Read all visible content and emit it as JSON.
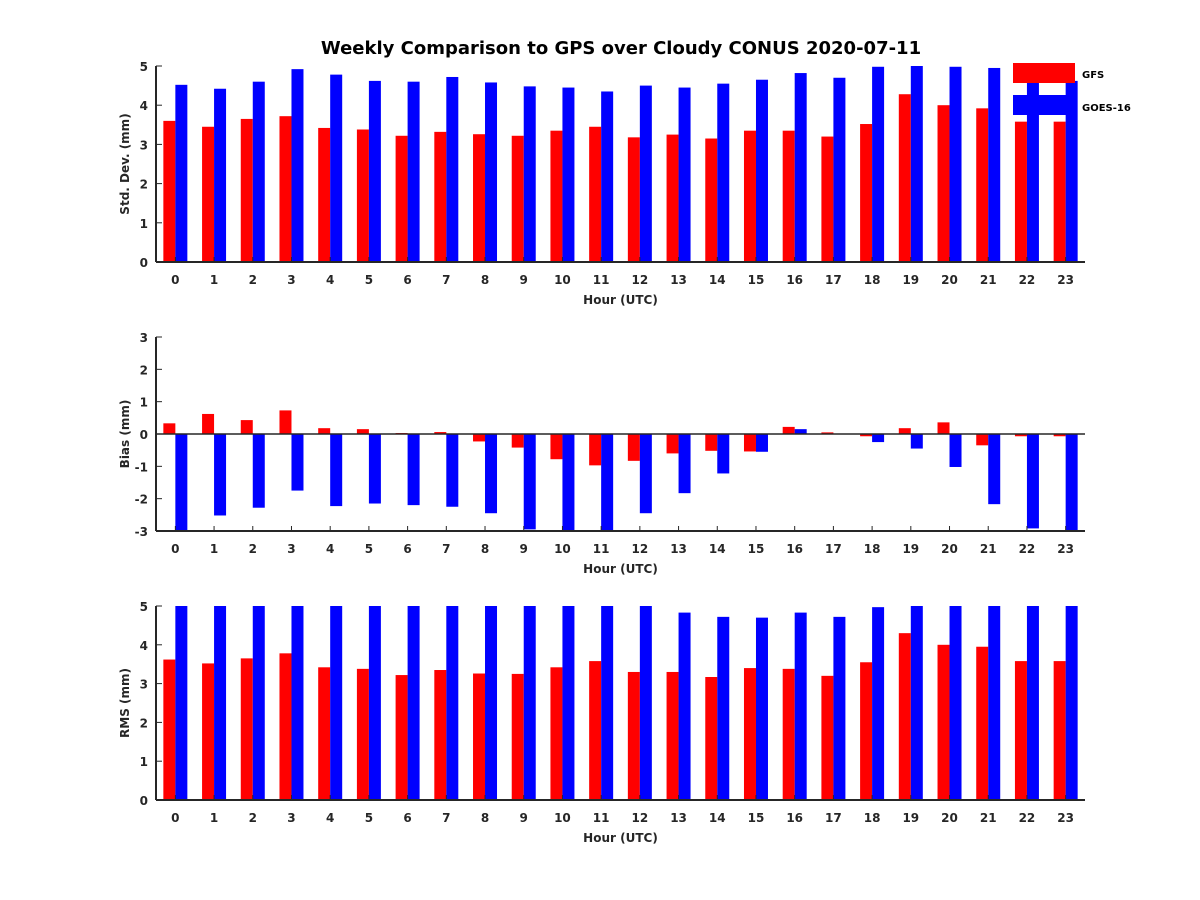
{
  "title": "Weekly Comparison to GPS over Cloudy CONUS 2020-07-11",
  "legend": {
    "placement": "top-right",
    "entries": [
      "GFS",
      "GOES-16"
    ]
  },
  "colors": {
    "gfs": "#ff0000",
    "goes": "#0000ff",
    "axis": "#262626"
  },
  "chart_data": [
    {
      "type": "bar",
      "xlabel": "Hour (UTC)",
      "ylabel": "Std. Dev. (mm)",
      "ylim": [
        0,
        5
      ],
      "yticks": [
        "0",
        "1",
        "2",
        "3",
        "4",
        "5"
      ],
      "categories": [
        "0",
        "1",
        "2",
        "3",
        "4",
        "5",
        "6",
        "7",
        "8",
        "9",
        "10",
        "11",
        "12",
        "13",
        "14",
        "15",
        "16",
        "17",
        "18",
        "19",
        "20",
        "21",
        "22",
        "23"
      ],
      "series": [
        {
          "name": "GFS",
          "values": [
            3.6,
            3.45,
            3.65,
            3.72,
            3.42,
            3.38,
            3.22,
            3.32,
            3.26,
            3.22,
            3.35,
            3.45,
            3.18,
            3.25,
            3.15,
            3.35,
            3.35,
            3.2,
            3.52,
            4.28,
            4.0,
            3.92,
            3.58,
            3.58
          ]
        },
        {
          "name": "GOES-16",
          "values": [
            4.52,
            4.42,
            4.6,
            4.92,
            4.78,
            4.62,
            4.6,
            4.72,
            4.58,
            4.48,
            4.45,
            4.35,
            4.5,
            4.45,
            4.55,
            4.65,
            4.82,
            4.7,
            4.98,
            5.0,
            4.98,
            4.95,
            4.65,
            4.62
          ]
        }
      ]
    },
    {
      "type": "bar",
      "xlabel": "Hour (UTC)",
      "ylabel": "Bias (mm)",
      "ylim": [
        -3,
        3
      ],
      "yticks": [
        "-3",
        "-2",
        "-1",
        "0",
        "1",
        "2",
        "3"
      ],
      "categories": [
        "0",
        "1",
        "2",
        "3",
        "4",
        "5",
        "6",
        "7",
        "8",
        "9",
        "10",
        "11",
        "12",
        "13",
        "14",
        "15",
        "16",
        "17",
        "18",
        "19",
        "20",
        "21",
        "22",
        "23"
      ],
      "series": [
        {
          "name": "GFS",
          "values": [
            0.33,
            0.62,
            0.43,
            0.73,
            0.18,
            0.15,
            0.03,
            0.06,
            -0.23,
            -0.42,
            -0.78,
            -0.97,
            -0.83,
            -0.6,
            -0.52,
            -0.54,
            0.22,
            0.05,
            -0.07,
            0.18,
            0.36,
            -0.35,
            -0.07,
            -0.07
          ]
        },
        {
          "name": "GOES-16",
          "values": [
            -3.0,
            -2.52,
            -2.28,
            -1.75,
            -2.23,
            -2.15,
            -2.2,
            -2.25,
            -2.45,
            -2.95,
            -3.0,
            -3.0,
            -2.45,
            -1.83,
            -1.22,
            -0.55,
            0.15,
            0.0,
            -0.25,
            -0.45,
            -1.02,
            -2.17,
            -2.92,
            -3.0
          ]
        }
      ]
    },
    {
      "type": "bar",
      "xlabel": "Hour (UTC)",
      "ylabel": "RMS (mm)",
      "ylim": [
        0,
        5
      ],
      "yticks": [
        "0",
        "1",
        "2",
        "3",
        "4",
        "5"
      ],
      "categories": [
        "0",
        "1",
        "2",
        "3",
        "4",
        "5",
        "6",
        "7",
        "8",
        "9",
        "10",
        "11",
        "12",
        "13",
        "14",
        "15",
        "16",
        "17",
        "18",
        "19",
        "20",
        "21",
        "22",
        "23"
      ],
      "series": [
        {
          "name": "GFS",
          "values": [
            3.62,
            3.52,
            3.65,
            3.78,
            3.42,
            3.38,
            3.22,
            3.35,
            3.26,
            3.25,
            3.42,
            3.58,
            3.3,
            3.3,
            3.17,
            3.4,
            3.38,
            3.2,
            3.55,
            4.3,
            4.0,
            3.95,
            3.58,
            3.58
          ]
        },
        {
          "name": "GOES-16",
          "values": [
            5.0,
            5.0,
            5.0,
            5.0,
            5.0,
            5.0,
            5.0,
            5.0,
            5.0,
            5.0,
            5.0,
            5.0,
            5.0,
            4.83,
            4.72,
            4.7,
            4.83,
            4.72,
            4.97,
            5.0,
            5.0,
            5.0,
            5.0,
            5.0
          ]
        }
      ]
    }
  ]
}
